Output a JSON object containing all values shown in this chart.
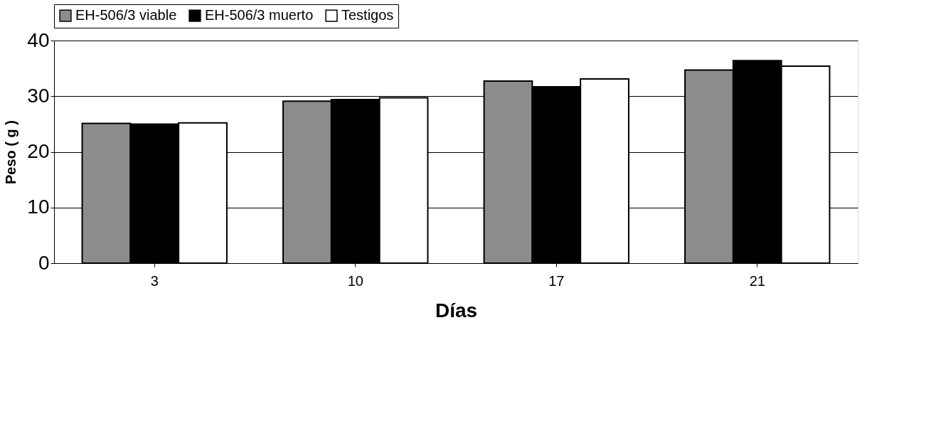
{
  "chart_data": {
    "type": "bar",
    "xlabel": "Días",
    "ylabel": "Peso ( g )",
    "categories": [
      "3",
      "10",
      "17",
      "21"
    ],
    "series": [
      {
        "name": "EH-506/3 viable",
        "color": "#8c8c8c",
        "values": [
          25.1,
          29.1,
          32.7,
          34.7
        ]
      },
      {
        "name": "EH-506/3 muerto",
        "color": "#000000",
        "values": [
          25.0,
          29.4,
          31.7,
          36.4
        ]
      },
      {
        "name": "Testigos",
        "color": "#ffffff",
        "values": [
          25.2,
          29.7,
          33.1,
          35.4
        ]
      }
    ],
    "ylim": [
      0,
      40
    ],
    "yticks": [
      0,
      10,
      20,
      30,
      40
    ],
    "grid": "y",
    "legend": "top"
  }
}
